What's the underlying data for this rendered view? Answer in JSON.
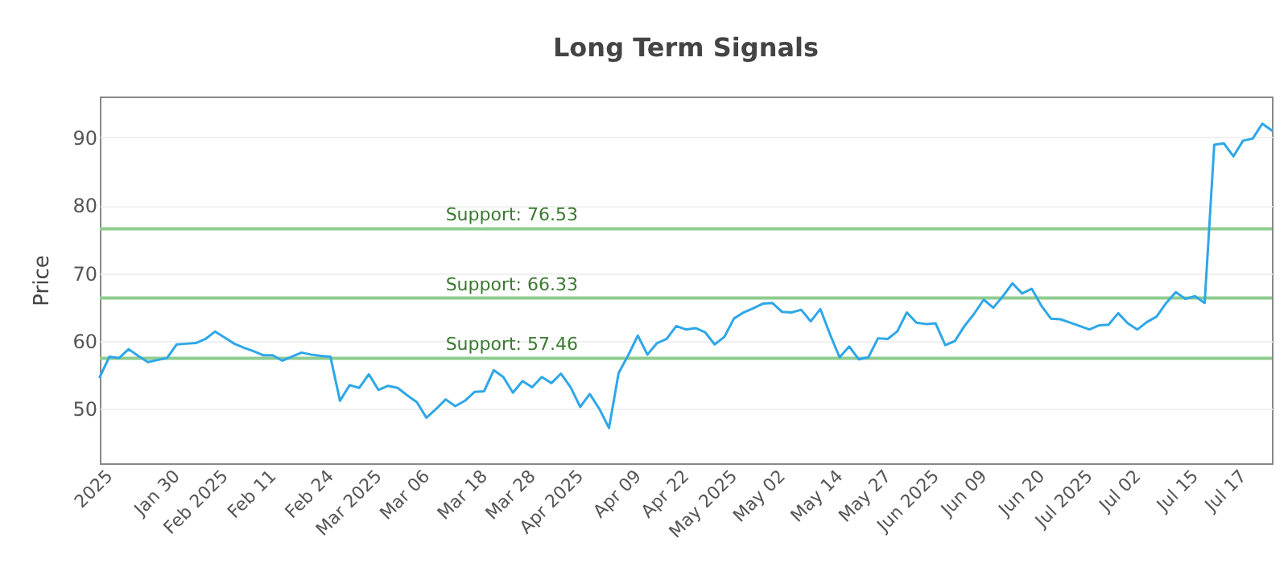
{
  "chart_data": {
    "type": "line",
    "title": "Long Term Signals",
    "ylabel": "Price",
    "categories": [
      null,
      "2025",
      null,
      null,
      null,
      null,
      null,
      null,
      "Jan 30",
      null,
      null,
      null,
      null,
      "Feb 2025",
      null,
      null,
      null,
      null,
      "Feb 11",
      null,
      null,
      null,
      null,
      null,
      "Feb 24",
      null,
      null,
      null,
      null,
      "Mar 2025",
      null,
      null,
      null,
      null,
      "Mar 06",
      null,
      null,
      null,
      null,
      null,
      "Mar 18",
      null,
      null,
      null,
      null,
      "Mar 28",
      null,
      null,
      null,
      null,
      "Apr 2025",
      null,
      null,
      null,
      null,
      null,
      "Apr 09",
      null,
      null,
      null,
      null,
      "Apr 22",
      null,
      null,
      null,
      null,
      "May 2025",
      null,
      null,
      null,
      null,
      "May 02",
      null,
      null,
      null,
      null,
      null,
      "May 14",
      null,
      null,
      null,
      null,
      "May 27",
      null,
      null,
      null,
      null,
      "Jun 2025",
      null,
      null,
      null,
      null,
      "Jun 09",
      null,
      null,
      null,
      null,
      null,
      "Jun 20",
      null,
      null,
      null,
      null,
      "Jul 2025",
      null,
      null,
      null,
      null,
      "Jul 02",
      null,
      null,
      null,
      null,
      null,
      "Jul 15",
      null,
      null,
      null,
      null,
      "Jul 17",
      null,
      null,
      null
    ],
    "series": [
      {
        "color": "#2ea7e8",
        "values": [
          54.7,
          57.7,
          57.5,
          58.8,
          57.8,
          56.9,
          57.2,
          57.5,
          59.5,
          59.6,
          59.7,
          60.3,
          61.4,
          60.5,
          59.6,
          59.0,
          58.5,
          57.9,
          57.9,
          57.1,
          57.7,
          58.3,
          58.0,
          57.8,
          57.7,
          51.2,
          53.5,
          53.1,
          55.1,
          52.8,
          53.4,
          53.1,
          52.0,
          51.0,
          48.7,
          50.0,
          51.4,
          50.4,
          51.2,
          52.5,
          52.6,
          55.7,
          54.7,
          52.4,
          54.1,
          53.2,
          54.7,
          53.8,
          55.2,
          53.2,
          50.3,
          52.2,
          50.0,
          47.2,
          55.3,
          57.9,
          60.8,
          58.0,
          59.7,
          60.3,
          62.2,
          61.7,
          61.9,
          61.3,
          59.5,
          60.6,
          63.3,
          64.2,
          64.8,
          65.5,
          65.6,
          64.3,
          64.2,
          64.6,
          62.9,
          64.7,
          61.0,
          57.6,
          59.2,
          57.3,
          57.6,
          60.4,
          60.3,
          61.4,
          64.2,
          62.7,
          62.5,
          62.6,
          59.4,
          60.0,
          62.2,
          64.0,
          66.1,
          64.9,
          66.6,
          68.5,
          67.0,
          67.7,
          65.2,
          63.3,
          63.2,
          62.7,
          62.2,
          61.7,
          62.3,
          62.4,
          64.1,
          62.6,
          61.7,
          62.8,
          63.6,
          65.6,
          67.2,
          66.2,
          66.6,
          65.6,
          88.9,
          89.1,
          87.2,
          89.5,
          89.8,
          92.0,
          91.0
        ]
      }
    ],
    "ylim": [
      42,
      96
    ],
    "yticks": [
      50,
      60,
      70,
      80,
      90
    ],
    "grid": "y",
    "legend": false,
    "marker": "none",
    "line_style": "solid",
    "ref_lines": [
      {
        "axis": "y",
        "value": 76.53,
        "label": "Support: 76.53",
        "color": "#8fcc8f"
      },
      {
        "axis": "y",
        "value": 66.33,
        "label": "Support: 66.33",
        "color": "#8fcc8f"
      },
      {
        "axis": "y",
        "value": 57.46,
        "label": "Support: 57.46",
        "color": "#8fcc8f"
      }
    ]
  }
}
